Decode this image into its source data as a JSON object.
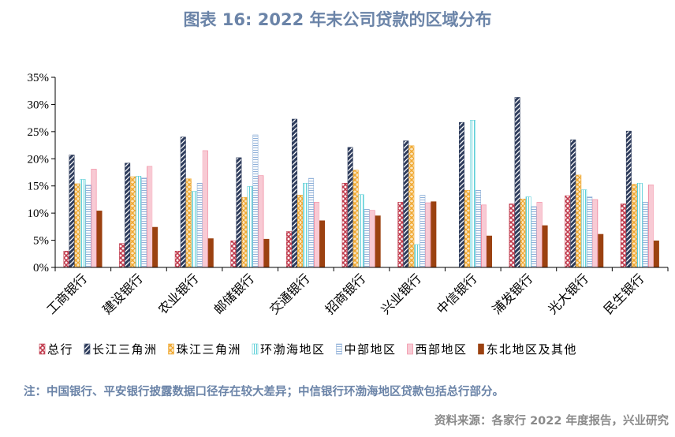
{
  "header": {
    "title": "图表 16:   2022 年末公司贷款的区域分布"
  },
  "footer": {
    "note": "注：中国银行、平安银行披露数据口径存在较大差异；中信银行环渤海地区贷款包括总行部分。",
    "source": "资料来源：各家行 2022 年度报告，兴业研究"
  },
  "colors": {
    "head_office": "#c0394b",
    "yangtze_delta": "#2e3c5c",
    "pearl_delta": "#f0a830",
    "bohai": "#5fd0d8",
    "central": "#8fb0d8",
    "west": "#f08aa0",
    "northeast": "#9b4110"
  },
  "chart_data": {
    "type": "bar",
    "title": "",
    "xlabel": "",
    "ylabel": "",
    "ylim": [
      0,
      0.35
    ],
    "y_ticks": [
      "0%",
      "5%",
      "10%",
      "15%",
      "20%",
      "25%",
      "30%",
      "35%"
    ],
    "grid": false,
    "legend_position": "bottom",
    "categories": [
      "工商银行",
      "建设银行",
      "农业银行",
      "邮储银行",
      "交通银行",
      "招商银行",
      "兴业银行",
      "中信银行",
      "浦发银行",
      "光大银行",
      "民生银行"
    ],
    "series": [
      {
        "name": "总行",
        "color_key": "head_office",
        "values": [
          0.03,
          0.044,
          0.03,
          0.049,
          0.066,
          0.155,
          0.12,
          null,
          0.117,
          0.132,
          0.117
        ]
      },
      {
        "name": "长江三角洲",
        "color_key": "yangtze_delta",
        "values": [
          0.207,
          0.192,
          0.24,
          0.202,
          0.273,
          0.221,
          0.233,
          0.267,
          0.313,
          0.235,
          0.251
        ]
      },
      {
        "name": "珠江三角洲",
        "color_key": "pearl_delta",
        "values": [
          0.154,
          0.167,
          0.163,
          0.129,
          0.133,
          0.179,
          0.224,
          0.142,
          0.126,
          0.17,
          0.153
        ]
      },
      {
        "name": "环渤海地区",
        "color_key": "bohai",
        "values": [
          0.162,
          0.168,
          0.14,
          0.149,
          0.155,
          0.134,
          0.042,
          0.271,
          0.13,
          0.143,
          0.155
        ]
      },
      {
        "name": "中部地区",
        "color_key": "central",
        "values": [
          0.152,
          0.165,
          0.155,
          0.244,
          0.164,
          0.107,
          0.133,
          0.142,
          0.112,
          0.13,
          0.12
        ]
      },
      {
        "name": "西部地区",
        "color_key": "west",
        "values": [
          0.181,
          0.186,
          0.215,
          0.169,
          0.12,
          0.105,
          0.119,
          0.115,
          0.12,
          0.125,
          0.152
        ]
      },
      {
        "name": "东北地区及其他",
        "color_key": "northeast",
        "values": [
          0.104,
          0.074,
          0.053,
          0.052,
          0.086,
          0.095,
          0.121,
          0.058,
          0.077,
          0.061,
          0.049
        ]
      }
    ]
  }
}
